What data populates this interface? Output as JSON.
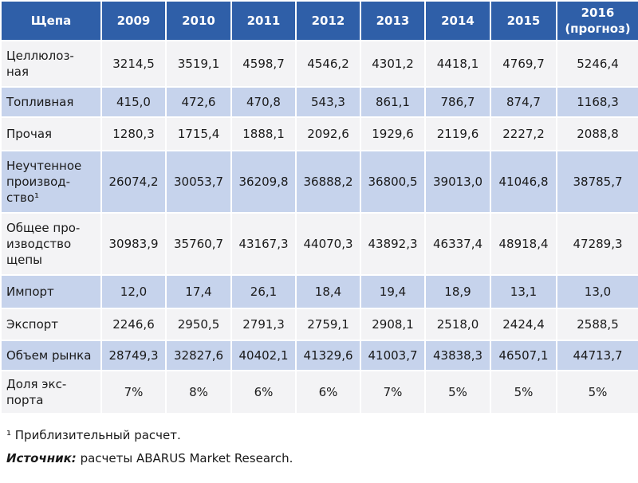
{
  "table": {
    "header": [
      "Щепа",
      "2009",
      "2010",
      "2011",
      "2012",
      "2013",
      "2014",
      "2015",
      "2016\n(прогноз)"
    ],
    "rows": [
      [
        "Целлюлоз-\nная",
        "3214,5",
        "3519,1",
        "4598,7",
        "4546,2",
        "4301,2",
        "4418,1",
        "4769,7",
        "5246,4"
      ],
      [
        "Топливная",
        "415,0",
        "472,6",
        "470,8",
        "543,3",
        "861,1",
        "786,7",
        "874,7",
        "1168,3"
      ],
      [
        "Прочая",
        "1280,3",
        "1715,4",
        "1888,1",
        "2092,6",
        "1929,6",
        "2119,6",
        "2227,2",
        "2088,8"
      ],
      [
        "Неучтенное\nпроизвод-\nство¹",
        "26074,2",
        "30053,7",
        "36209,8",
        "36888,2",
        "36800,5",
        "39013,0",
        "41046,8",
        "38785,7"
      ],
      [
        "Общее про-\nизводство\nщепы",
        "30983,9",
        "35760,7",
        "43167,3",
        "44070,3",
        "43892,3",
        "46337,4",
        "48918,4",
        "47289,3"
      ],
      [
        "Импорт",
        "12,0",
        "17,4",
        "26,1",
        "18,4",
        "19,4",
        "18,9",
        "13,1",
        "13,0"
      ],
      [
        "Экспорт",
        "2246,6",
        "2950,5",
        "2791,3",
        "2759,1",
        "2908,1",
        "2518,0",
        "2424,4",
        "2588,5"
      ],
      [
        "Объем рынка",
        "28749,3",
        "32827,6",
        "40402,1",
        "41329,6",
        "41003,7",
        "43838,3",
        "46507,1",
        "44713,7"
      ],
      [
        "Доля экс-\nпорта",
        "7%",
        "8%",
        "6%",
        "6%",
        "7%",
        "5%",
        "5%",
        "5%"
      ]
    ]
  },
  "footnote": "¹ Приблизительный расчет.",
  "source": {
    "label": "Источник:",
    "text": "расчеты ABARUS Market Research."
  }
}
